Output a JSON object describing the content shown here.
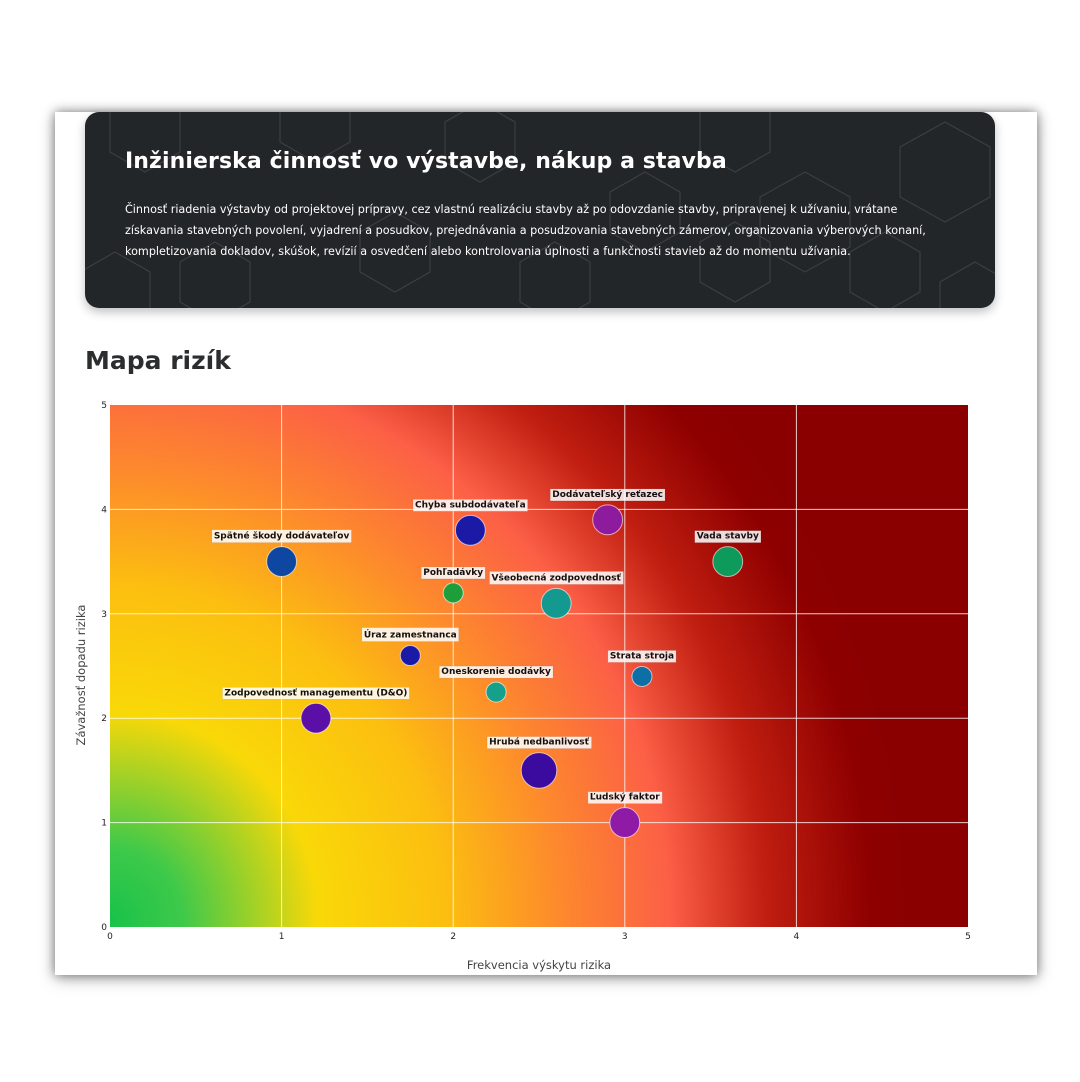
{
  "header": {
    "title": "Inžinierska činnosť vo výstavbe, nákup a stavba",
    "description": "Činnosť riadenia výstavby od projektovej prípravy, cez vlastnú realizáciu stavby až po odovzdanie stavby, pripravenej k užívaniu, vrátane získavania stavebných povolení, vyjadrení a posudkov, prejednávania a posudzovania stavebných zámerov, organizovania výberových konaní, kompletizovania dokladov, skúšok, revízií a osvedčení alebo kontrolovania úplnosti a funkčnosti stavieb až do momentu užívania."
  },
  "section": {
    "title": "Mapa rizík"
  },
  "chart_data": {
    "type": "scatter",
    "xlabel": "Frekvencia výskytu rizika",
    "ylabel": "Závažnosť dopadu rizika",
    "xlim": [
      0,
      5
    ],
    "ylim": [
      0,
      5
    ],
    "xticks": [
      "0",
      "1",
      "2",
      "3",
      "4",
      "5"
    ],
    "yticks": [
      "0",
      "1",
      "2",
      "3",
      "4",
      "5"
    ],
    "grid": true,
    "background": "risk heatmap gradient from green (low) through yellow and orange to dark red (high)",
    "points": [
      {
        "label": "Spätné škody dodávateľov",
        "x": 1.0,
        "y": 3.5,
        "size": 3,
        "color": "#0d47a1"
      },
      {
        "label": "Chyba subdodávateľa",
        "x": 2.1,
        "y": 3.8,
        "size": 3,
        "color": "#1a1aa6"
      },
      {
        "label": "Dodávateľský reťazec",
        "x": 2.9,
        "y": 3.9,
        "size": 3,
        "color": "#8e1a9e"
      },
      {
        "label": "Vada stavby",
        "x": 3.6,
        "y": 3.5,
        "size": 3,
        "color": "#0e9a5a"
      },
      {
        "label": "Pohľadávky",
        "x": 2.0,
        "y": 3.2,
        "size": 1,
        "color": "#1e9e3a"
      },
      {
        "label": "Všeobecná zodpovednosť",
        "x": 2.6,
        "y": 3.1,
        "size": 3,
        "color": "#13998f"
      },
      {
        "label": "Úraz zamestnanca",
        "x": 1.75,
        "y": 2.6,
        "size": 1,
        "color": "#1a1aa6"
      },
      {
        "label": "Strata stroja",
        "x": 3.1,
        "y": 2.4,
        "size": 1,
        "color": "#0d6fa6"
      },
      {
        "label": "Oneskorenie dodávky",
        "x": 2.25,
        "y": 2.25,
        "size": 1,
        "color": "#14a08a"
      },
      {
        "label": "Zodpovednosť managementu (D&O)",
        "x": 1.2,
        "y": 2.0,
        "size": 3,
        "color": "#5c0fa6"
      },
      {
        "label": "Hrubá nedbanlivosť",
        "x": 2.5,
        "y": 1.5,
        "size": 6,
        "color": "#3b0a9e"
      },
      {
        "label": "Ľudský faktor",
        "x": 3.0,
        "y": 1.0,
        "size": 3,
        "color": "#8e1aa6"
      }
    ]
  }
}
